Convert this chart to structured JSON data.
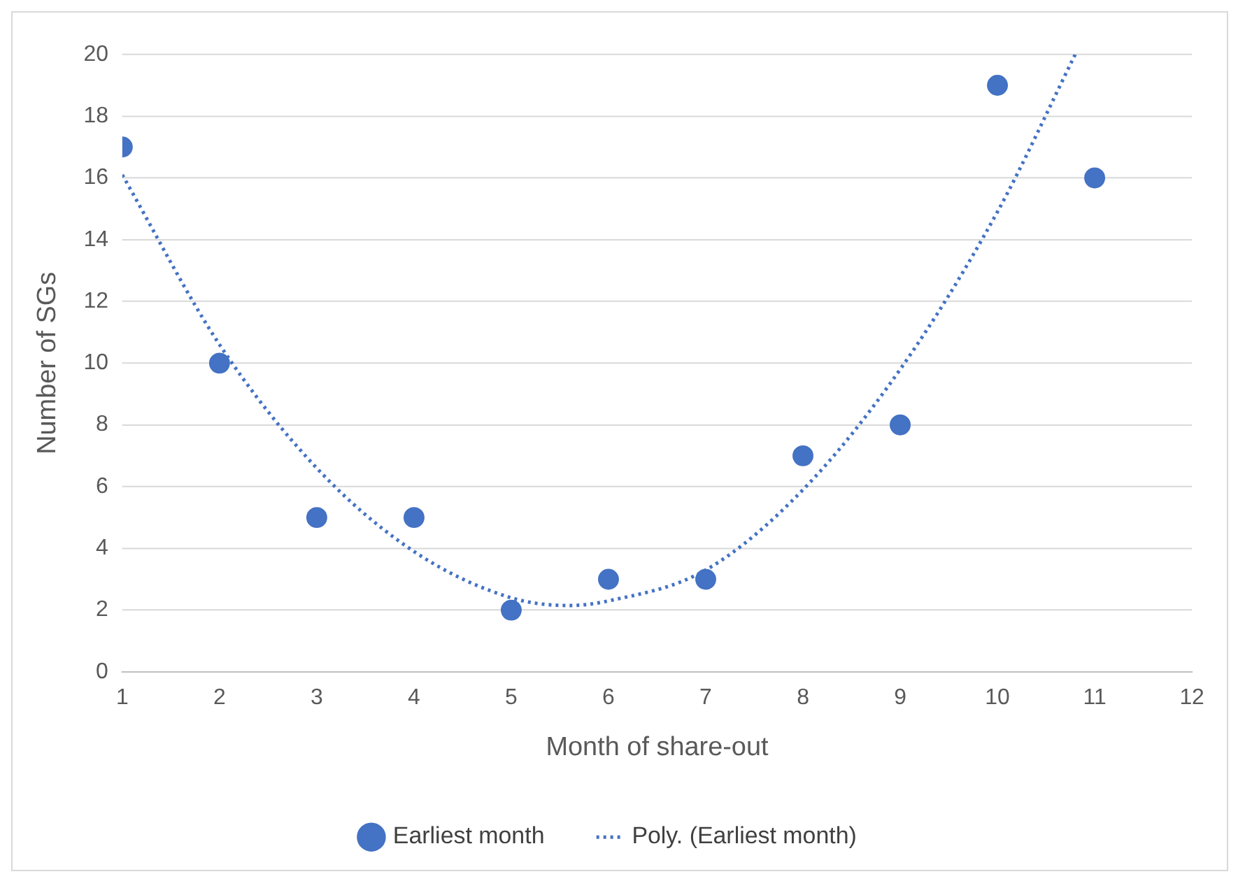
{
  "chart_data": {
    "type": "scatter",
    "xlabel": "Month of share-out",
    "ylabel": "Number of SGs",
    "xlim": [
      1,
      12
    ],
    "xticks": [
      1,
      2,
      3,
      4,
      5,
      6,
      7,
      8,
      9,
      10,
      11,
      12
    ],
    "ylim": [
      0,
      20
    ],
    "yticks": [
      0,
      2,
      4,
      6,
      8,
      10,
      12,
      14,
      16,
      18,
      20
    ],
    "grid": "y",
    "legend": "bottom",
    "series": [
      {
        "name": "Earliest month",
        "type": "scatter",
        "marker": "circle",
        "color": "#4472c4",
        "x": [
          1,
          2,
          3,
          4,
          5,
          6,
          7,
          8,
          9,
          10,
          11
        ],
        "values": [
          17,
          10,
          5,
          5,
          2,
          3,
          3,
          7,
          8,
          19,
          16
        ]
      },
      {
        "name": "Poly. (Earliest month)",
        "type": "line",
        "marker": "none",
        "line_style": "dotted",
        "color": "#4472c4",
        "x": [
          1,
          2,
          3,
          4,
          5,
          5.6,
          6,
          7,
          8,
          9,
          10,
          10.8
        ],
        "values": [
          16.1,
          10.6,
          6.6,
          3.9,
          2.4,
          2.15,
          2.3,
          3.3,
          5.9,
          9.8,
          14.9,
          20
        ]
      }
    ]
  }
}
